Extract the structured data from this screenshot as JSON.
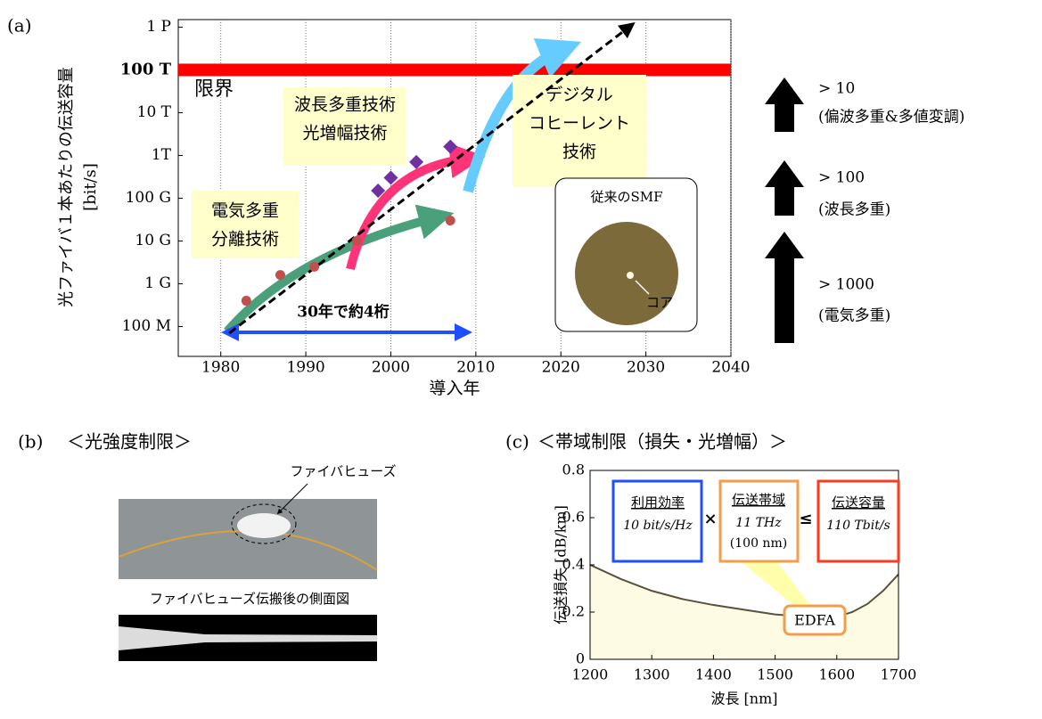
{
  "chart_data": [
    {
      "type": "scatter",
      "panel_label": "(a)",
      "x_label": "導入年",
      "y_label": [
        "光ファイバ１本あたりの伝送容量",
        "[bit/s]"
      ],
      "xlim": [
        1975,
        2040
      ],
      "xticks": [
        1980,
        1990,
        2000,
        2010,
        2020,
        2030,
        2040
      ],
      "ylim": [
        20000000,
        1500000000000000
      ],
      "log_y": true,
      "grid": true,
      "yticks": [
        {
          "value": 100000000,
          "label": "100 M"
        },
        {
          "value": 1000000000,
          "label": "1 G"
        },
        {
          "value": 10000000000,
          "label": "10 G"
        },
        {
          "value": 100000000000,
          "label": "100 G"
        },
        {
          "value": 1000000000000,
          "label": "1T"
        },
        {
          "value": 10000000000000,
          "label": "10 T"
        },
        {
          "value": 100000000000000,
          "label": "100 T"
        },
        {
          "value": 1000000000000000,
          "label": "1 P"
        }
      ],
      "limit_line": {
        "value": 100000000000000,
        "label": "限界",
        "color": "#ff0000"
      },
      "trend": {
        "x": [
          1981,
          2028
        ],
        "y": [
          70000000,
          1000000000000000
        ]
      },
      "series": [
        {
          "marker": "circle",
          "color": "#c0504d",
          "x": [
            1983,
            1987,
            1991,
            1996,
            2007
          ],
          "values": [
            400000000,
            1600000000,
            2500000000,
            10000000000,
            30000000000
          ]
        },
        {
          "marker": "diamond",
          "color": "#7030a0",
          "x": [
            1998.5,
            2000,
            2003,
            2007
          ],
          "values": [
            150000000000,
            300000000000,
            700000000000,
            1600000000000
          ]
        }
      ],
      "annotations": [
        [
          "波長多重技術",
          "光増幅技術"
        ],
        [
          "デジタル",
          "コヒーレント",
          "技術"
        ],
        [
          "電気多重",
          "分離技術"
        ],
        [
          "30年で約4桁"
        ],
        [
          "従来のSMF"
        ],
        [
          "コア"
        ]
      ],
      "factors": [
        [
          "> 10",
          "(偏波多重&多値変調)"
        ],
        [
          "> 100",
          "(波長多重)"
        ],
        [
          "> 1000",
          "(電気多重)"
        ]
      ]
    },
    {
      "type": "line",
      "panel_label": "(c)",
      "title": "＜帯域制限（損失・光増幅）＞",
      "x_label": "波長 [nm]",
      "y_label": "伝送損失 [dB/km]",
      "xlim": [
        1200,
        1700
      ],
      "xticks": [
        1200,
        1300,
        1400,
        1500,
        1600,
        1700
      ],
      "ylim": [
        0,
        0.8
      ],
      "yticks": [
        0,
        0.2,
        0.4,
        0.6,
        0.8
      ],
      "color": "#5a5040",
      "fill": "#fdfbe3",
      "x": [
        1200,
        1250,
        1300,
        1350,
        1400,
        1450,
        1500,
        1550,
        1600,
        1625,
        1650,
        1675,
        1700
      ],
      "values": [
        0.4,
        0.34,
        0.29,
        0.255,
        0.23,
        0.21,
        0.19,
        0.18,
        0.18,
        0.2,
        0.235,
        0.29,
        0.36
      ],
      "boxes": [
        [
          "利用効率",
          "10 bit/s/Hz"
        ],
        [
          "×"
        ],
        [
          "伝送帯域",
          "11 THz",
          "(100 nm)"
        ],
        [
          "≤"
        ],
        [
          "伝送容量",
          "110 Tbit/s"
        ],
        [
          "EDFA"
        ]
      ]
    }
  ],
  "panel_b": {
    "label": "(b)",
    "title": "＜光強度制限＞",
    "callout": "ファイバヒューズ",
    "caption": "ファイバヒューズ伝搬後の側面図"
  }
}
